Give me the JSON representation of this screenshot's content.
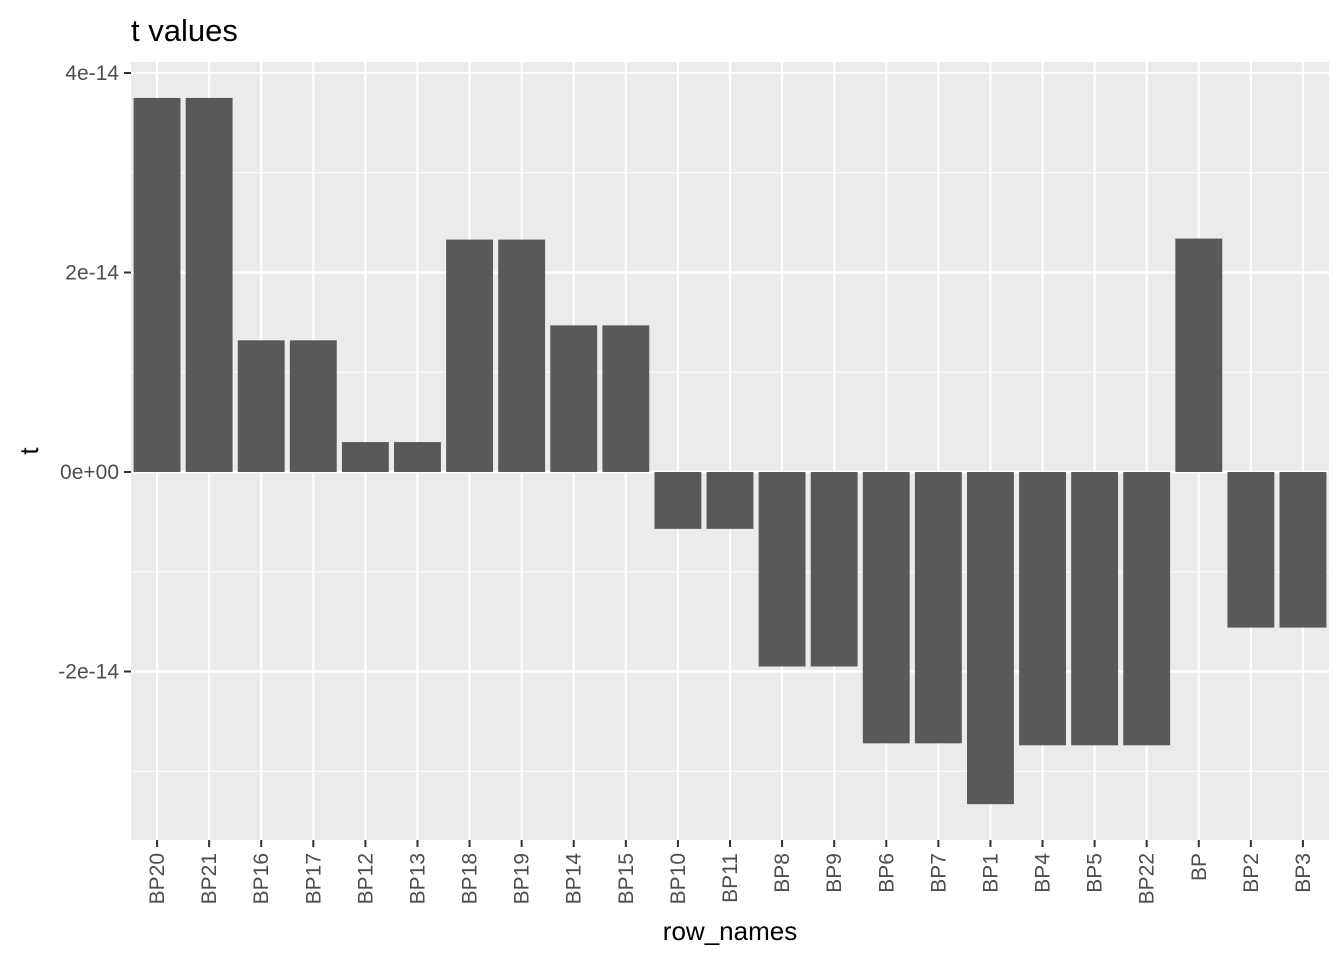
{
  "chart_data": {
    "type": "bar",
    "title": "t values",
    "xlabel": "row_names",
    "ylabel": "t",
    "categories": [
      "BP20",
      "BP21",
      "BP16",
      "BP17",
      "BP12",
      "BP13",
      "BP18",
      "BP19",
      "BP14",
      "BP15",
      "BP10",
      "BP11",
      "BP8",
      "BP9",
      "BP6",
      "BP7",
      "BP1",
      "BP4",
      "BP5",
      "BP22",
      "BP",
      "BP2",
      "BP3"
    ],
    "values": [
      3.75e-14,
      3.75e-14,
      1.32e-14,
      1.32e-14,
      3e-15,
      3e-15,
      2.33e-14,
      2.33e-14,
      1.47e-14,
      1.47e-14,
      -5.7e-15,
      -5.7e-15,
      -1.95e-14,
      -1.95e-14,
      -2.72e-14,
      -2.72e-14,
      -3.33e-14,
      -2.74e-14,
      -2.74e-14,
      -2.74e-14,
      2.34e-14,
      -1.56e-14,
      -1.56e-14
    ],
    "yticks": [
      4e-14,
      2e-14,
      0,
      -2e-14
    ],
    "ytick_labels": [
      "4e-14",
      "2e-14",
      "0e+00",
      "-2e-14"
    ],
    "ylim": [
      -3.7e-14,
      4.1e-14
    ],
    "grid": true,
    "legend": "none",
    "colors": {
      "bar": "#595959",
      "panel": "#ebebeb",
      "grid": "#ffffff"
    }
  }
}
